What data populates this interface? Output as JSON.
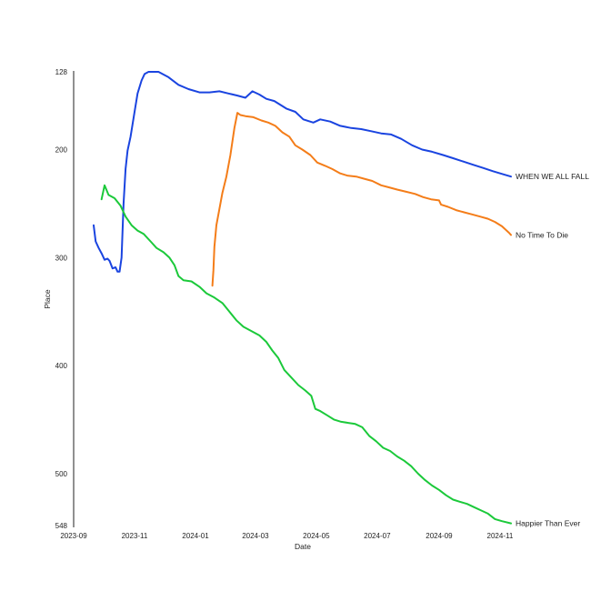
{
  "chart_data": {
    "type": "line",
    "title": "",
    "xlabel": "Date",
    "ylabel": "Place",
    "y_inverted": true,
    "ylim": [
      128,
      548
    ],
    "xlim": [
      "2023-09-01",
      "2024-11-12"
    ],
    "grid": false,
    "legend": "end-of-line labels",
    "x_ticks": [
      "2023-09",
      "2023-11",
      "2024-01",
      "2024-03",
      "2024-05",
      "2024-07",
      "2024-09",
      "2024-11"
    ],
    "y_ticks": [
      128,
      200,
      300,
      400,
      500,
      548
    ],
    "series": [
      {
        "name": "WHEN WE ALL FALL",
        "color": "#1a44e0",
        "points": [
          [
            "2023-09-21",
            270
          ],
          [
            "2023-09-23",
            285
          ],
          [
            "2023-09-26",
            291
          ],
          [
            "2023-09-29",
            296
          ],
          [
            "2023-10-02",
            302
          ],
          [
            "2023-10-05",
            301
          ],
          [
            "2023-10-07",
            303
          ],
          [
            "2023-10-10",
            310
          ],
          [
            "2023-10-13",
            309
          ],
          [
            "2023-10-15",
            313
          ],
          [
            "2023-10-17",
            313
          ],
          [
            "2023-10-19",
            300
          ],
          [
            "2023-10-21",
            250
          ],
          [
            "2023-10-23",
            218
          ],
          [
            "2023-10-25",
            201
          ],
          [
            "2023-10-28",
            188
          ],
          [
            "2023-11-01",
            165
          ],
          [
            "2023-11-04",
            148
          ],
          [
            "2023-11-08",
            136
          ],
          [
            "2023-11-11",
            130
          ],
          [
            "2023-11-15",
            128
          ],
          [
            "2023-11-25",
            128
          ],
          [
            "2023-12-05",
            133
          ],
          [
            "2023-12-15",
            140
          ],
          [
            "2023-12-25",
            144
          ],
          [
            "2024-01-05",
            147
          ],
          [
            "2024-01-15",
            147
          ],
          [
            "2024-01-25",
            146
          ],
          [
            "2024-02-03",
            148
          ],
          [
            "2024-02-12",
            150
          ],
          [
            "2024-02-20",
            152
          ],
          [
            "2024-02-27",
            146
          ],
          [
            "2024-03-05",
            149
          ],
          [
            "2024-03-12",
            153
          ],
          [
            "2024-03-20",
            155
          ],
          [
            "2024-04-01",
            162
          ],
          [
            "2024-04-10",
            165
          ],
          [
            "2024-04-18",
            172
          ],
          [
            "2024-04-28",
            175
          ],
          [
            "2024-05-05",
            172
          ],
          [
            "2024-05-15",
            174
          ],
          [
            "2024-05-25",
            178
          ],
          [
            "2024-06-05",
            180
          ],
          [
            "2024-06-15",
            181
          ],
          [
            "2024-06-25",
            183
          ],
          [
            "2024-07-05",
            185
          ],
          [
            "2024-07-15",
            186
          ],
          [
            "2024-07-25",
            190
          ],
          [
            "2024-08-05",
            196
          ],
          [
            "2024-08-15",
            200
          ],
          [
            "2024-08-25",
            202
          ],
          [
            "2024-09-05",
            205
          ],
          [
            "2024-09-15",
            208
          ],
          [
            "2024-09-25",
            211
          ],
          [
            "2024-10-05",
            214
          ],
          [
            "2024-10-15",
            217
          ],
          [
            "2024-10-25",
            220
          ],
          [
            "2024-11-05",
            223
          ],
          [
            "2024-11-12",
            225
          ]
        ]
      },
      {
        "name": "No Time To Die",
        "color": "#f47d19",
        "points": [
          [
            "2024-01-18",
            326
          ],
          [
            "2024-01-19",
            312
          ],
          [
            "2024-01-20",
            290
          ],
          [
            "2024-01-22",
            270
          ],
          [
            "2024-01-25",
            255
          ],
          [
            "2024-01-28",
            240
          ],
          [
            "2024-02-01",
            225
          ],
          [
            "2024-02-05",
            205
          ],
          [
            "2024-02-09",
            180
          ],
          [
            "2024-02-12",
            166
          ],
          [
            "2024-02-15",
            168
          ],
          [
            "2024-02-20",
            169
          ],
          [
            "2024-02-28",
            170
          ],
          [
            "2024-03-07",
            173
          ],
          [
            "2024-03-14",
            175
          ],
          [
            "2024-03-21",
            178
          ],
          [
            "2024-03-28",
            184
          ],
          [
            "2024-04-04",
            188
          ],
          [
            "2024-04-10",
            196
          ],
          [
            "2024-04-17",
            200
          ],
          [
            "2024-04-25",
            205
          ],
          [
            "2024-05-02",
            212
          ],
          [
            "2024-05-10",
            215
          ],
          [
            "2024-05-17",
            218
          ],
          [
            "2024-05-25",
            222
          ],
          [
            "2024-06-01",
            224
          ],
          [
            "2024-06-10",
            225
          ],
          [
            "2024-06-18",
            227
          ],
          [
            "2024-06-26",
            229
          ],
          [
            "2024-07-05",
            233
          ],
          [
            "2024-07-13",
            235
          ],
          [
            "2024-07-21",
            237
          ],
          [
            "2024-07-30",
            239
          ],
          [
            "2024-08-08",
            241
          ],
          [
            "2024-08-16",
            244
          ],
          [
            "2024-08-24",
            246
          ],
          [
            "2024-09-01",
            247
          ],
          [
            "2024-09-03",
            251
          ],
          [
            "2024-09-10",
            253
          ],
          [
            "2024-09-18",
            256
          ],
          [
            "2024-09-26",
            258
          ],
          [
            "2024-10-04",
            260
          ],
          [
            "2024-10-12",
            262
          ],
          [
            "2024-10-20",
            264
          ],
          [
            "2024-10-27",
            267
          ],
          [
            "2024-11-03",
            271
          ],
          [
            "2024-11-10",
            277
          ],
          [
            "2024-11-12",
            279
          ]
        ]
      },
      {
        "name": "Happier Than Ever",
        "color": "#1bc93a",
        "points": [
          [
            "2023-09-29",
            246
          ],
          [
            "2023-10-02",
            233
          ],
          [
            "2023-10-06",
            242
          ],
          [
            "2023-10-12",
            245
          ],
          [
            "2023-10-18",
            252
          ],
          [
            "2023-10-23",
            262
          ],
          [
            "2023-10-29",
            270
          ],
          [
            "2023-11-04",
            275
          ],
          [
            "2023-11-10",
            278
          ],
          [
            "2023-11-17",
            285
          ],
          [
            "2023-11-23",
            291
          ],
          [
            "2023-11-30",
            295
          ],
          [
            "2023-12-06",
            300
          ],
          [
            "2023-12-11",
            307
          ],
          [
            "2023-12-15",
            317
          ],
          [
            "2023-12-20",
            321
          ],
          [
            "2023-12-28",
            322
          ],
          [
            "2024-01-05",
            327
          ],
          [
            "2024-01-12",
            333
          ],
          [
            "2024-01-20",
            337
          ],
          [
            "2024-01-28",
            342
          ],
          [
            "2024-02-04",
            350
          ],
          [
            "2024-02-11",
            358
          ],
          [
            "2024-02-18",
            364
          ],
          [
            "2024-02-26",
            368
          ],
          [
            "2024-03-05",
            372
          ],
          [
            "2024-03-12",
            378
          ],
          [
            "2024-03-18",
            386
          ],
          [
            "2024-03-24",
            393
          ],
          [
            "2024-03-30",
            404
          ],
          [
            "2024-04-06",
            411
          ],
          [
            "2024-04-13",
            418
          ],
          [
            "2024-04-20",
            423
          ],
          [
            "2024-04-26",
            428
          ],
          [
            "2024-04-30",
            440
          ],
          [
            "2024-05-05",
            442
          ],
          [
            "2024-05-12",
            446
          ],
          [
            "2024-05-19",
            450
          ],
          [
            "2024-05-26",
            452
          ],
          [
            "2024-06-02",
            453
          ],
          [
            "2024-06-09",
            454
          ],
          [
            "2024-06-16",
            457
          ],
          [
            "2024-06-23",
            465
          ],
          [
            "2024-06-30",
            470
          ],
          [
            "2024-07-07",
            476
          ],
          [
            "2024-07-14",
            479
          ],
          [
            "2024-07-21",
            484
          ],
          [
            "2024-07-28",
            488
          ],
          [
            "2024-08-04",
            493
          ],
          [
            "2024-08-11",
            500
          ],
          [
            "2024-08-18",
            506
          ],
          [
            "2024-08-25",
            511
          ],
          [
            "2024-09-01",
            515
          ],
          [
            "2024-09-08",
            520
          ],
          [
            "2024-09-15",
            524
          ],
          [
            "2024-09-22",
            526
          ],
          [
            "2024-09-29",
            528
          ],
          [
            "2024-10-06",
            531
          ],
          [
            "2024-10-13",
            534
          ],
          [
            "2024-10-20",
            537
          ],
          [
            "2024-10-27",
            542
          ],
          [
            "2024-11-03",
            544
          ],
          [
            "2024-11-12",
            546
          ]
        ]
      }
    ]
  }
}
